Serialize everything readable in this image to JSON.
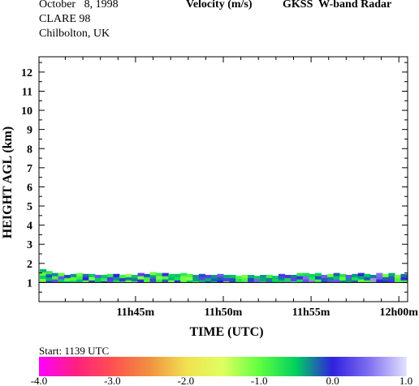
{
  "header": {
    "date": "October   8, 1998",
    "campaign": "CLARE 98",
    "location": "Chilbolton, UK",
    "quantity": "Velocity (m/s)",
    "instrument": "GKSS  W-band Radar"
  },
  "start_text": "Start: 1139 UTC",
  "chart_data": {
    "type": "heatmap",
    "xlabel": "TIME (UTC)",
    "ylabel": "HEIGHT AGL (km)",
    "y_ticks": [
      "1",
      "2",
      "3",
      "4",
      "5",
      "6",
      "7",
      "8",
      "9",
      "10",
      "11",
      "12"
    ],
    "x_ticks": [
      {
        "label": "11h45m",
        "minutes": 45
      },
      {
        "label": "11h50m",
        "minutes": 50
      },
      {
        "label": "11h55m",
        "minutes": 55
      },
      {
        "label": "12h00m",
        "minutes": 60
      }
    ],
    "ylim": [
      0.0,
      12.8
    ],
    "xlim_minutes": [
      39.5,
      60.5
    ],
    "layer": {
      "base_km": 1.0,
      "top_km_samples": [
        1.7,
        1.6,
        1.5,
        1.5,
        1.4,
        1.45,
        1.5,
        1.45,
        1.45,
        1.4,
        1.4,
        1.45,
        1.45,
        1.4,
        1.45,
        1.4,
        1.5,
        1.45,
        1.55,
        1.5,
        1.5,
        1.45,
        1.45,
        1.5,
        1.45,
        1.4,
        1.45,
        1.4,
        1.4,
        1.45,
        1.4,
        1.4,
        1.35,
        1.4,
        1.4,
        1.35,
        1.4,
        1.4,
        1.35,
        1.45,
        1.4,
        1.4,
        1.5,
        1.5,
        1.45,
        1.5,
        1.4,
        1.45,
        1.5,
        1.45,
        1.4,
        1.45,
        1.5,
        1.45,
        1.4,
        1.5,
        1.45,
        1.5,
        1.4,
        1.45
      ],
      "velocity_range": [
        -1.2,
        0.4
      ]
    },
    "colorbar": {
      "min": -4.0,
      "max": 1.0,
      "labels": [
        "-4.0",
        "-3.0",
        "-2.0",
        "-1.0",
        "0.0",
        "1.0"
      ],
      "label_values": [
        -4.0,
        -3.0,
        -2.0,
        -1.0,
        0.0,
        1.0
      ],
      "stops": [
        {
          "v": -4.0,
          "color": "#ff00ff"
        },
        {
          "v": -3.5,
          "color": "#ff2080"
        },
        {
          "v": -3.0,
          "color": "#ff5050"
        },
        {
          "v": -2.5,
          "color": "#f09040"
        },
        {
          "v": -2.0,
          "color": "#f0e050"
        },
        {
          "v": -1.5,
          "color": "#e0ff60"
        },
        {
          "v": -1.0,
          "color": "#60ff40"
        },
        {
          "v": -0.5,
          "color": "#00d060"
        },
        {
          "v": 0.0,
          "color": "#3020e0"
        },
        {
          "v": 0.5,
          "color": "#8070f0"
        },
        {
          "v": 1.0,
          "color": "#e0e0ff"
        }
      ]
    }
  }
}
